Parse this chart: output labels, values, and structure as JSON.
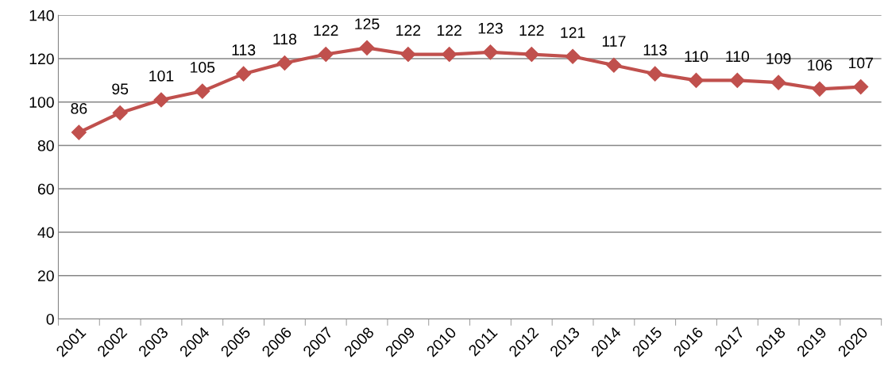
{
  "chart_data": {
    "type": "line",
    "categories": [
      "2001",
      "2002",
      "2003",
      "2004",
      "2005",
      "2006",
      "2007",
      "2008",
      "2009",
      "2010",
      "2011",
      "2012",
      "2013",
      "2014",
      "2015",
      "2016",
      "2017",
      "2018",
      "2019",
      "2020"
    ],
    "series": [
      {
        "color": "#c0504d",
        "values": [
          86,
          95,
          101,
          105,
          113,
          118,
          122,
          125,
          122,
          122,
          123,
          122,
          121,
          117,
          113,
          110,
          110,
          109,
          106,
          107
        ]
      }
    ],
    "ylim": [
      0,
      140
    ],
    "yticks": [
      0,
      20,
      40,
      60,
      80,
      100,
      120,
      140
    ],
    "grid": "y",
    "marker": "diamond",
    "line_style": "solid",
    "data_labels": true,
    "legend": false
  }
}
